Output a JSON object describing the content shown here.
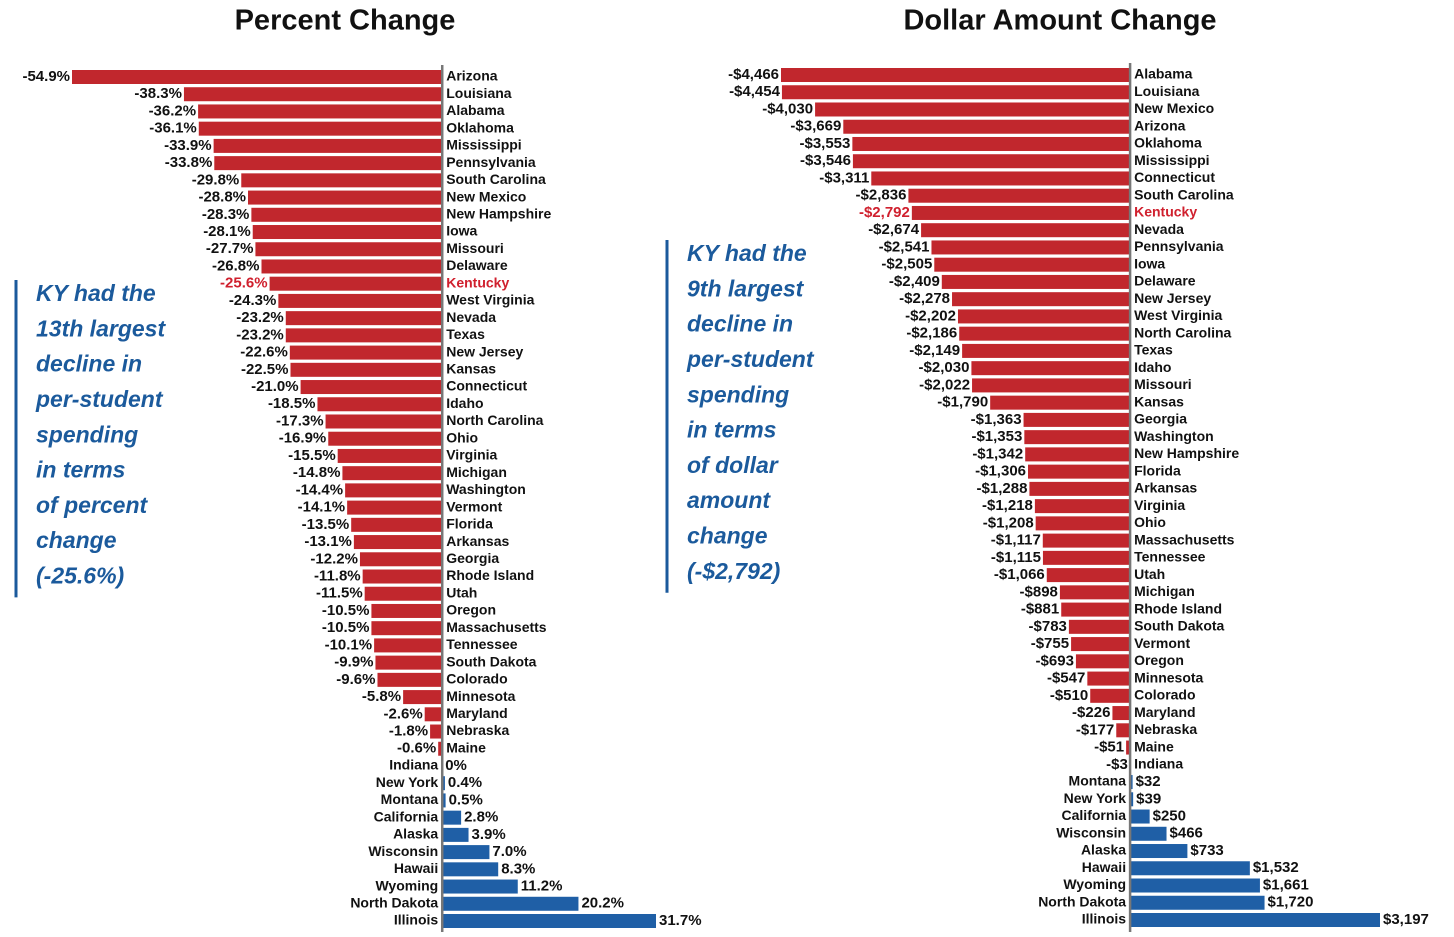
{
  "chart_data": [
    {
      "type": "bar",
      "orientation": "horizontal",
      "title": "Percent Change",
      "categories": [
        "Arizona",
        "Louisiana",
        "Alabama",
        "Oklahoma",
        "Mississippi",
        "Pennsylvania",
        "South Carolina",
        "New Mexico",
        "New Hampshire",
        "Iowa",
        "Missouri",
        "Delaware",
        "Kentucky",
        "West Virginia",
        "Nevada",
        "Texas",
        "New Jersey",
        "Kansas",
        "Connecticut",
        "Idaho",
        "North Carolina",
        "Ohio",
        "Virginia",
        "Michigan",
        "Washington",
        "Vermont",
        "Florida",
        "Arkansas",
        "Georgia",
        "Rhode Island",
        "Utah",
        "Oregon",
        "Massachusetts",
        "Tennessee",
        "South Dakota",
        "Colorado",
        "Minnesota",
        "Maryland",
        "Nebraska",
        "Maine",
        "Indiana",
        "New York",
        "Montana",
        "California",
        "Alaska",
        "Wisconsin",
        "Hawaii",
        "Wyoming",
        "North Dakota",
        "Illinois"
      ],
      "values": [
        -54.9,
        -38.3,
        -36.2,
        -36.1,
        -33.9,
        -33.8,
        -29.8,
        -28.8,
        -28.3,
        -28.1,
        -27.7,
        -26.8,
        -25.6,
        -24.3,
        -23.2,
        -23.2,
        -22.6,
        -22.5,
        -21.0,
        -18.5,
        -17.3,
        -16.9,
        -15.5,
        -14.8,
        -14.4,
        -14.1,
        -13.5,
        -13.1,
        -12.2,
        -11.8,
        -11.5,
        -10.5,
        -10.5,
        -10.1,
        -9.9,
        -9.6,
        -5.8,
        -2.6,
        -1.8,
        -0.6,
        0,
        0.4,
        0.5,
        2.8,
        3.9,
        7.0,
        8.3,
        11.2,
        20.2,
        31.7
      ],
      "value_labels": [
        "-54.9%",
        "-38.3%",
        "-36.2%",
        "-36.1%",
        "-33.9%",
        "-33.8%",
        "-29.8%",
        "-28.8%",
        "-28.3%",
        "-28.1%",
        "-27.7%",
        "-26.8%",
        "-25.6%",
        "-24.3%",
        "-23.2%",
        "-23.2%",
        "-22.6%",
        "-22.5%",
        "-21.0%",
        "-18.5%",
        "-17.3%",
        "-16.9%",
        "-15.5%",
        "-14.8%",
        "-14.4%",
        "-14.1%",
        "-13.5%",
        "-13.1%",
        "-12.2%",
        "-11.8%",
        "-11.5%",
        "-10.5%",
        "-10.5%",
        "-10.1%",
        "-9.9%",
        "-9.6%",
        "-5.8%",
        "-2.6%",
        "-1.8%",
        "-0.6%",
        "0%",
        "0.4%",
        "0.5%",
        "2.8%",
        "3.9%",
        "7.0%",
        "8.3%",
        "11.2%",
        "20.2%",
        "31.7%"
      ],
      "xlim": [
        -54.9,
        31.7
      ],
      "color": "#c1272d",
      "positive_color": "#1f5fa6",
      "highlight": "Kentucky",
      "highlight_color": "#d0202e",
      "annotation": [
        "KY had the",
        "13th largest",
        "decline in",
        "per-student",
        "spending",
        "in terms",
        "of percent",
        "change",
        "(-25.6%)"
      ]
    },
    {
      "type": "bar",
      "orientation": "horizontal",
      "title": "Dollar Amount Change",
      "categories": [
        "Alabama",
        "Louisiana",
        "New Mexico",
        "Arizona",
        "Oklahoma",
        "Mississippi",
        "Connecticut",
        "South Carolina",
        "Kentucky",
        "Nevada",
        "Pennsylvania",
        "Iowa",
        "Delaware",
        "New Jersey",
        "West Virginia",
        "North Carolina",
        "Texas",
        "Idaho",
        "Missouri",
        "Kansas",
        "Georgia",
        "Washington",
        "New Hampshire",
        "Florida",
        "Arkansas",
        "Virginia",
        "Ohio",
        "Massachusetts",
        "Tennessee",
        "Utah",
        "Michigan",
        "Rhode Island",
        "South Dakota",
        "Vermont",
        "Oregon",
        "Minnesota",
        "Colorado",
        "Maryland",
        "Nebraska",
        "Maine",
        "Indiana",
        "Montana",
        "New York",
        "California",
        "Wisconsin",
        "Alaska",
        "Hawaii",
        "Wyoming",
        "North Dakota",
        "Illinois"
      ],
      "values": [
        -4466,
        -4454,
        -4030,
        -3669,
        -3553,
        -3546,
        -3311,
        -2836,
        -2792,
        -2674,
        -2541,
        -2505,
        -2409,
        -2278,
        -2202,
        -2186,
        -2149,
        -2030,
        -2022,
        -1790,
        -1363,
        -1353,
        -1342,
        -1306,
        -1288,
        -1218,
        -1208,
        -1117,
        -1115,
        -1066,
        -898,
        -881,
        -783,
        -755,
        -693,
        -547,
        -510,
        -226,
        -177,
        -51,
        -3,
        32,
        39,
        250,
        466,
        733,
        1532,
        1661,
        1720,
        3197
      ],
      "value_labels": [
        "-$4,466",
        "-$4,454",
        "-$4,030",
        "-$3,669",
        "-$3,553",
        "-$3,546",
        "-$3,311",
        "-$2,836",
        "-$2,792",
        "-$2,674",
        "-$2,541",
        "-$2,505",
        "-$2,409",
        "-$2,278",
        "-$2,202",
        "-$2,186",
        "-$2,149",
        "-$2,030",
        "-$2,022",
        "-$1,790",
        "-$1,363",
        "-$1,353",
        "-$1,342",
        "-$1,306",
        "-$1,288",
        "-$1,218",
        "-$1,208",
        "-$1,117",
        "-$1,115",
        "-$1,066",
        "-$898",
        "-$881",
        "-$783",
        "-$755",
        "-$693",
        "-$547",
        "-$510",
        "-$226",
        "-$177",
        "-$51",
        "-$3",
        "$32",
        "$39",
        "$250",
        "$466",
        "$733",
        "$1,532",
        "$1,661",
        "$1,720",
        "$3,197"
      ],
      "xlim": [
        -4466,
        3197
      ],
      "color": "#c1272d",
      "positive_color": "#1f5fa6",
      "highlight": "Kentucky",
      "highlight_color": "#d0202e",
      "annotation": [
        "KY had the",
        "9th largest",
        "decline in",
        "per-student",
        "spending",
        "in terms",
        "of dollar",
        "amount",
        "change",
        "(-$2,792)"
      ]
    }
  ]
}
